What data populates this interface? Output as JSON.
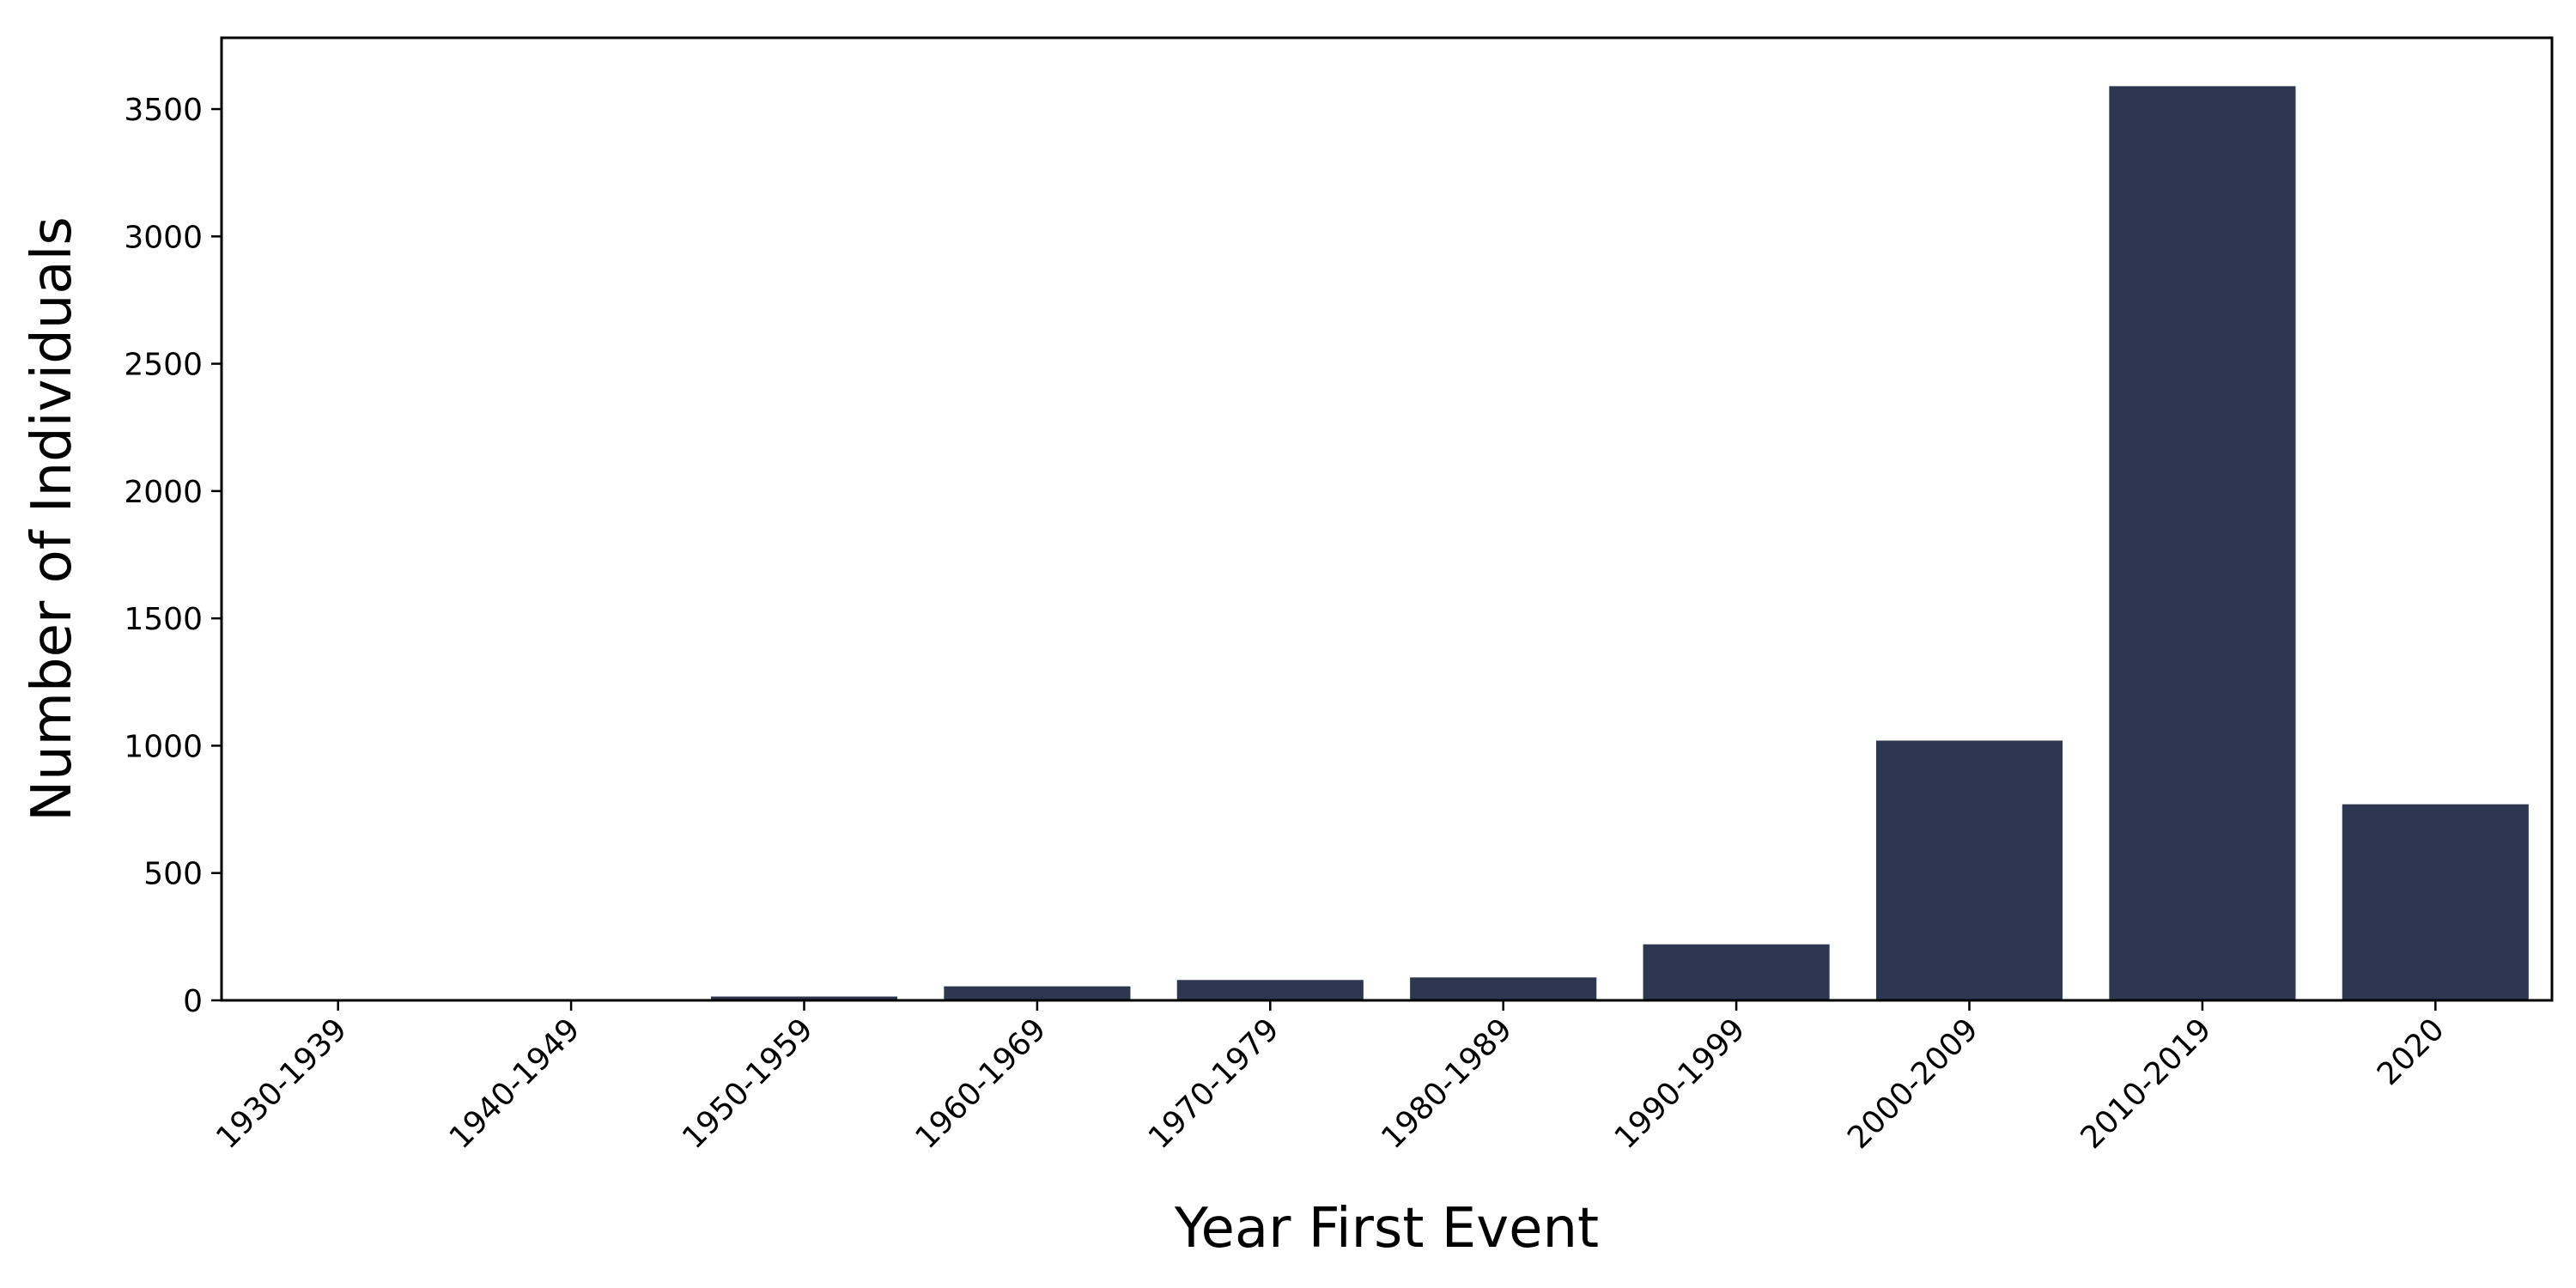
{
  "chart_data": {
    "type": "bar",
    "title": "",
    "xlabel": "Year First Event",
    "ylabel": "Number of Individuals",
    "categories": [
      "1930-1939",
      "1940-1949",
      "1950-1959",
      "1960-1969",
      "1970-1979",
      "1980-1989",
      "1990-1999",
      "2000-2009",
      "2010-2019",
      "2020"
    ],
    "values": [
      2,
      3,
      15,
      55,
      80,
      90,
      220,
      1020,
      3590,
      770
    ],
    "ylim": [
      0,
      3780
    ],
    "yticks": [
      0,
      500,
      1000,
      1500,
      2000,
      2500,
      3000,
      3500
    ],
    "grid": false,
    "legend": "none",
    "bar_color": "#2d3850"
  }
}
